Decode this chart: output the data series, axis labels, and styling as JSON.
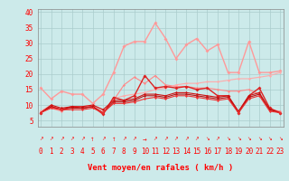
{
  "background_color": "#cceaea",
  "grid_color": "#aacccc",
  "x_labels": [
    "0",
    "1",
    "2",
    "3",
    "4",
    "5",
    "6",
    "7",
    "8",
    "9",
    "10",
    "11",
    "12",
    "13",
    "14",
    "15",
    "16",
    "17",
    "18",
    "19",
    "20",
    "21",
    "22",
    "23"
  ],
  "xlabel": "Vent moyen/en rafales ( km/h )",
  "ylim": [
    3,
    41
  ],
  "xlim": [
    -0.3,
    23.3
  ],
  "yticks": [
    5,
    10,
    15,
    20,
    25,
    30,
    35,
    40
  ],
  "series": [
    {
      "color": "#ff9999",
      "linewidth": 1.0,
      "markersize": 2.0,
      "data": [
        15.5,
        12.0,
        14.5,
        13.5,
        13.5,
        10.5,
        13.5,
        20.5,
        29.0,
        30.5,
        30.5,
        36.5,
        31.5,
        25.0,
        29.5,
        31.5,
        27.5,
        29.5,
        20.5,
        20.5,
        30.5,
        20.5,
        20.5,
        21.0
      ]
    },
    {
      "color": "#ff8888",
      "linewidth": 0.8,
      "markersize": 1.5,
      "data": [
        8.0,
        9.0,
        8.0,
        9.5,
        9.5,
        9.5,
        7.5,
        11.5,
        16.5,
        19.0,
        17.0,
        19.5,
        16.5,
        16.0,
        16.0,
        15.5,
        15.5,
        15.0,
        14.5,
        14.5,
        15.0,
        13.5,
        8.5,
        8.0
      ]
    },
    {
      "color": "#ffaaaa",
      "linewidth": 0.8,
      "markersize": 1.5,
      "data": [
        8.0,
        10.0,
        8.5,
        9.5,
        9.5,
        10.0,
        8.0,
        12.0,
        13.0,
        13.5,
        14.0,
        15.0,
        15.5,
        16.5,
        17.0,
        17.0,
        17.5,
        17.5,
        18.0,
        18.5,
        18.5,
        19.0,
        19.5,
        20.5
      ]
    },
    {
      "color": "#dd2222",
      "linewidth": 1.0,
      "markersize": 2.0,
      "data": [
        7.5,
        9.5,
        8.5,
        9.5,
        9.0,
        9.5,
        7.0,
        12.5,
        11.5,
        13.0,
        19.5,
        15.5,
        16.0,
        15.5,
        16.0,
        15.0,
        15.5,
        13.0,
        13.0,
        7.5,
        13.0,
        15.5,
        9.0,
        7.5
      ]
    },
    {
      "color": "#cc1111",
      "linewidth": 0.8,
      "markersize": 1.5,
      "data": [
        7.5,
        10.0,
        9.0,
        9.5,
        9.5,
        10.0,
        8.5,
        11.5,
        11.5,
        12.0,
        13.5,
        13.5,
        13.0,
        14.0,
        14.0,
        13.5,
        13.0,
        12.5,
        13.0,
        8.0,
        13.0,
        14.0,
        8.5,
        7.5
      ]
    },
    {
      "color": "#bb1111",
      "linewidth": 0.8,
      "markersize": 1.5,
      "data": [
        7.5,
        9.5,
        8.5,
        9.0,
        9.0,
        9.5,
        7.5,
        11.0,
        11.0,
        11.5,
        13.0,
        13.0,
        12.5,
        13.5,
        13.5,
        13.0,
        12.5,
        12.0,
        12.5,
        7.5,
        12.5,
        13.5,
        8.5,
        7.5
      ]
    },
    {
      "color": "#ee3333",
      "linewidth": 0.8,
      "markersize": 1.5,
      "data": [
        7.5,
        9.0,
        8.5,
        8.5,
        8.5,
        9.0,
        7.5,
        10.5,
        10.5,
        11.0,
        12.0,
        12.5,
        12.0,
        13.0,
        13.0,
        12.5,
        12.0,
        11.5,
        12.0,
        7.5,
        12.0,
        13.0,
        8.0,
        7.5
      ]
    }
  ],
  "arrow_chars": [
    "↗",
    "↗",
    "↗",
    "↗",
    "↗",
    "↑",
    "↗",
    "↑",
    "↗",
    "↗",
    "→",
    "↗",
    "↗",
    "↗",
    "↗",
    "↗",
    "↘",
    "↗",
    "↘",
    "↘",
    "↘",
    "↘",
    "↘",
    "↘"
  ],
  "tick_fontsize": 5.5,
  "xlabel_fontsize": 6.5
}
